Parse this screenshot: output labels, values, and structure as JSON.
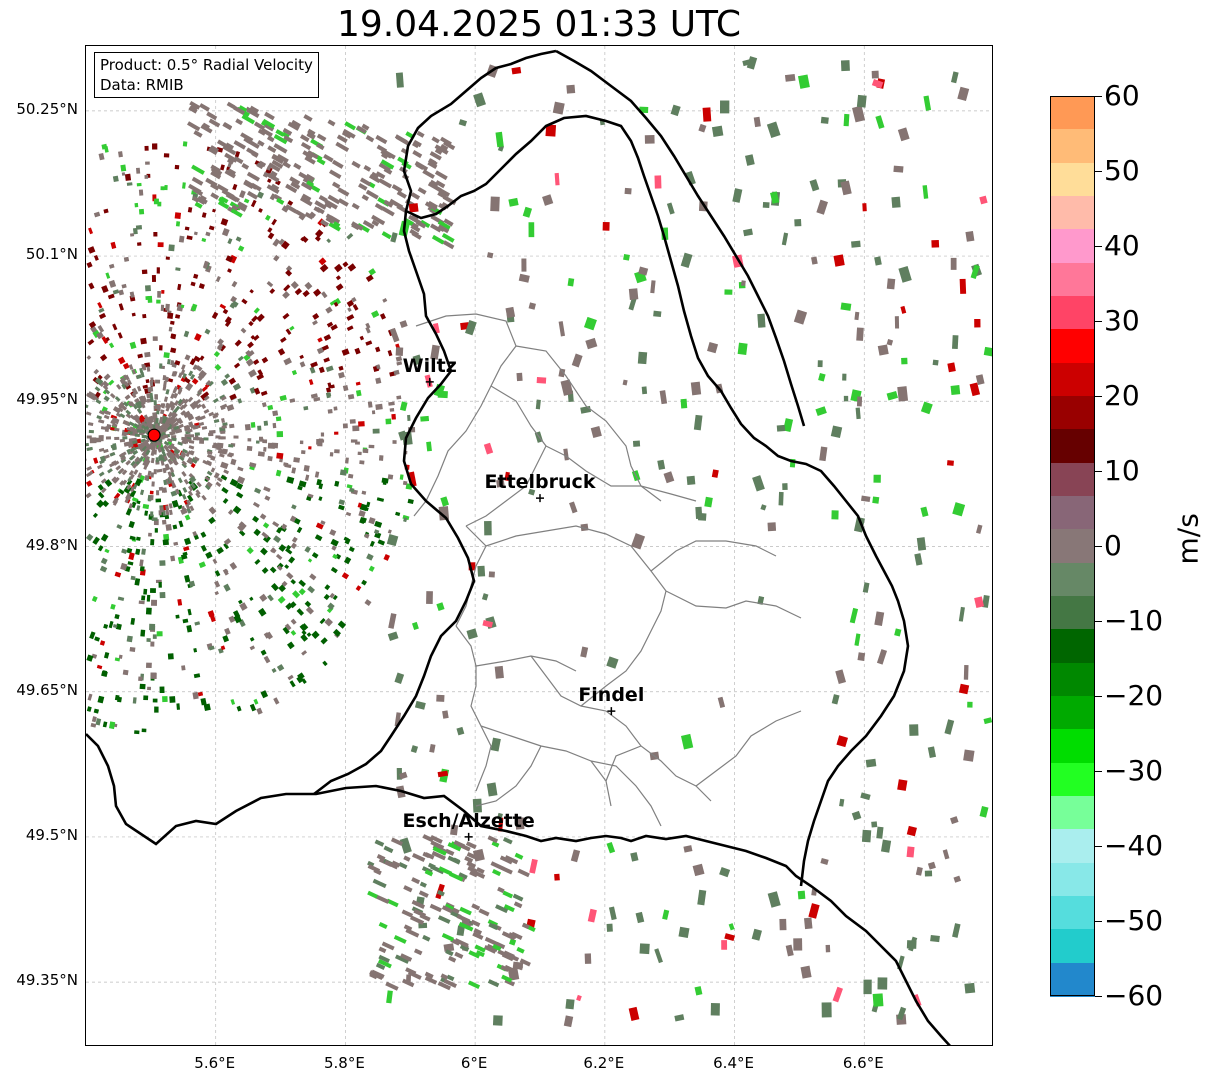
{
  "title": "19.04.2025 01:33 UTC",
  "info": {
    "product": "Product: 0.5° Radial Velocity",
    "data_source": "Data: RMIB"
  },
  "latitude_labels": [
    "50.25°N",
    "50.1°N",
    "49.95°N",
    "49.8°N",
    "49.65°N",
    "49.5°N",
    "49.35°N"
  ],
  "longitude_labels": [
    "5.6°E",
    "5.8°E",
    "6°E",
    "6.2°E",
    "6.4°E",
    "6.6°E"
  ],
  "cities": [
    {
      "name": "Wiltz",
      "lon": 5.93,
      "lat": 49.97
    },
    {
      "name": "Ettelbruck",
      "lon": 6.1,
      "lat": 49.85
    },
    {
      "name": "Findel",
      "lon": 6.21,
      "lat": 49.63
    },
    {
      "name": "Esch/Alzette",
      "lon": 5.99,
      "lat": 49.5
    }
  ],
  "radar_site": {
    "lon": 5.505,
    "lat": 49.915
  },
  "colorbar": {
    "unit": "m/s",
    "min": -60,
    "max": 60,
    "ticks": [
      "60",
      "50",
      "40",
      "30",
      "20",
      "10",
      "0",
      "−10",
      "−20",
      "−30",
      "−40",
      "−50",
      "−60"
    ],
    "colors": [
      "#ff9955",
      "#ffbb77",
      "#ffdd99",
      "#ffbbaa",
      "#ff99cc",
      "#ff7799",
      "#ff4466",
      "#ff0000",
      "#cc0000",
      "#990000",
      "#660000",
      "#884455",
      "#886677",
      "#887777",
      "#668866",
      "#447744",
      "#006600",
      "#008800",
      "#00aa00",
      "#00dd00",
      "#22ff22",
      "#77ff99",
      "#aaeeee",
      "#88e8e8",
      "#55dddd",
      "#22cccc",
      "#2288cc"
    ]
  },
  "colors": {
    "grey_echo": "#857472",
    "dark_green": "#005f00",
    "green": "#33cc33",
    "red": "#cc0000",
    "dark_red": "#7a0000",
    "pink": "#ff5577",
    "cyan": "#88eeee",
    "border": "#000000",
    "canton": "#808080",
    "grid": "#bbbbbb"
  }
}
